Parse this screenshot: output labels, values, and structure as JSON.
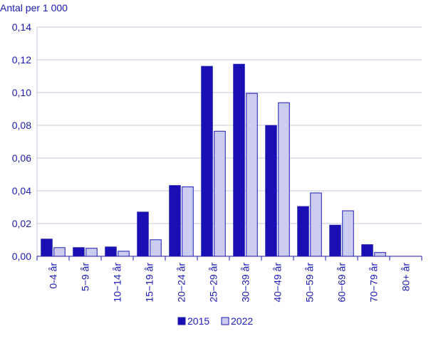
{
  "chart_data": {
    "type": "bar",
    "title": "",
    "ylabel": "Antal per 1 000",
    "xlabel": "",
    "categories": [
      "0-4 år",
      "5−9 år",
      "10−14 år",
      "15−19 år",
      "20−24 år",
      "25−29 år",
      "30−39 år",
      "40−49 år",
      "50−59 år",
      "60−69 år",
      "70−79 år",
      "80+ år"
    ],
    "series": [
      {
        "name": "2015",
        "values": [
          0.0105,
          0.0053,
          0.0057,
          0.027,
          0.0432,
          0.116,
          0.1173,
          0.0799,
          0.0304,
          0.019,
          0.0071,
          0.0
        ]
      },
      {
        "name": "2022",
        "values": [
          0.0053,
          0.0049,
          0.0031,
          0.0101,
          0.0424,
          0.0764,
          0.0995,
          0.0938,
          0.0387,
          0.0278,
          0.0023,
          0.0
        ]
      }
    ],
    "ylim": [
      0,
      0.14
    ],
    "yticks": [
      "0,00",
      "0,02",
      "0,04",
      "0,06",
      "0,08",
      "0,10",
      "0,12",
      "0,14"
    ],
    "grid": true,
    "legend_position": "bottom",
    "colors": {
      "2015": "#1a0fb4",
      "2022": "#ccccee",
      "bar_stroke": "#1a1ab4",
      "grid": "#c7c7dd",
      "text": "#1a1ab4"
    }
  }
}
